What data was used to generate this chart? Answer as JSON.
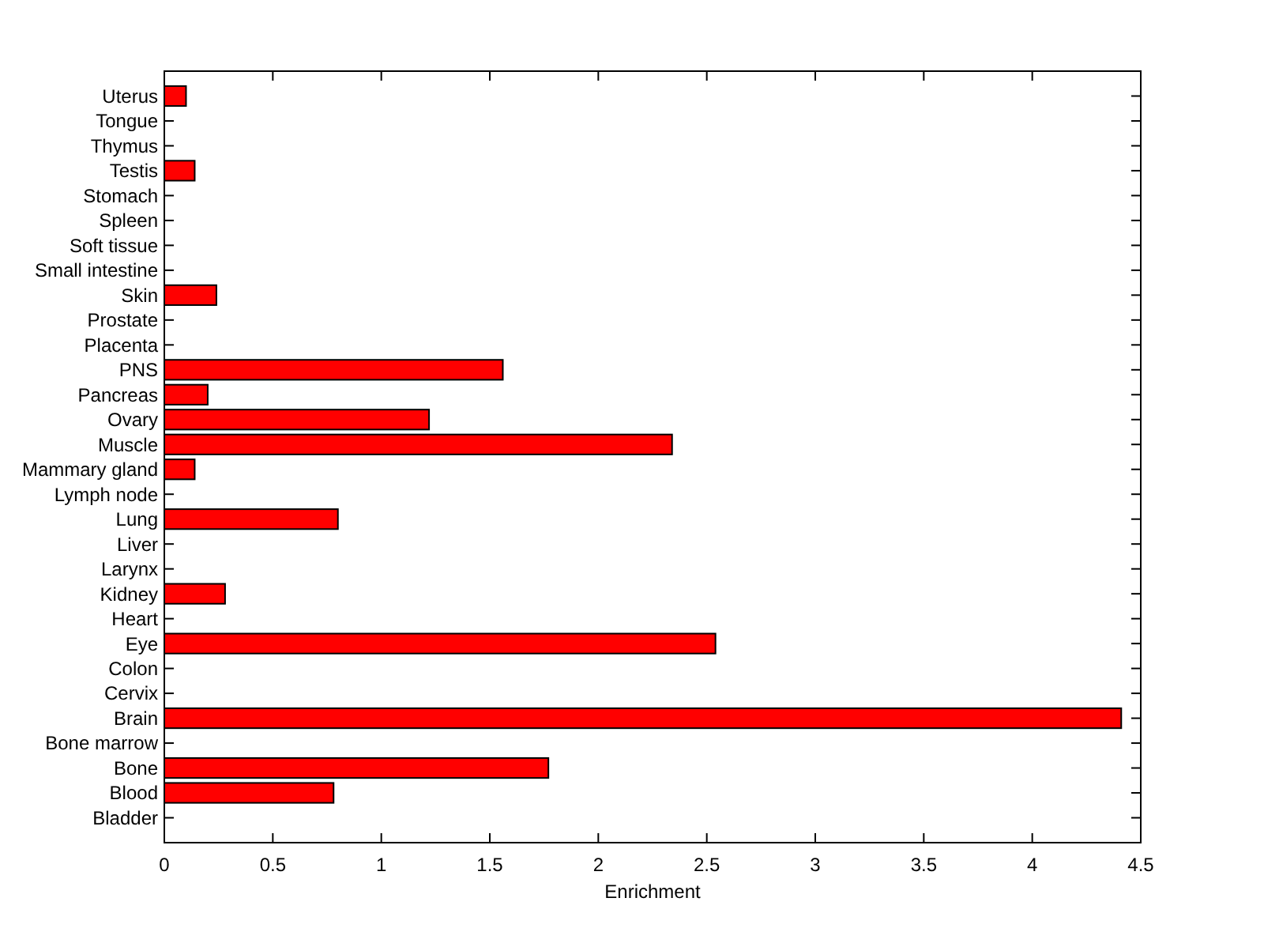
{
  "chart_data": {
    "type": "bar",
    "orientation": "horizontal",
    "xlabel": "Enrichment",
    "categories": [
      "Uterus",
      "Tongue",
      "Thymus",
      "Testis",
      "Stomach",
      "Spleen",
      "Soft tissue",
      "Small intestine",
      "Skin",
      "Prostate",
      "Placenta",
      "PNS",
      "Pancreas",
      "Ovary",
      "Muscle",
      "Mammary gland",
      "Lymph node",
      "Lung",
      "Liver",
      "Larynx",
      "Kidney",
      "Heart",
      "Eye",
      "Colon",
      "Cervix",
      "Brain",
      "Bone marrow",
      "Bone",
      "Blood",
      "Bladder"
    ],
    "values": [
      0.1,
      0,
      0,
      0.14,
      0,
      0,
      0,
      0,
      0.24,
      0,
      0,
      1.56,
      0.2,
      1.22,
      2.34,
      0.14,
      0,
      0.8,
      0,
      0,
      0.28,
      0,
      2.54,
      0,
      0,
      4.41,
      0,
      1.77,
      0.78,
      0
    ],
    "color": "#ff0000",
    "xlim": [
      0,
      4.5
    ],
    "xticks": [
      0,
      0.5,
      1,
      1.5,
      2,
      2.5,
      3,
      3.5,
      4,
      4.5
    ],
    "grid": false
  }
}
